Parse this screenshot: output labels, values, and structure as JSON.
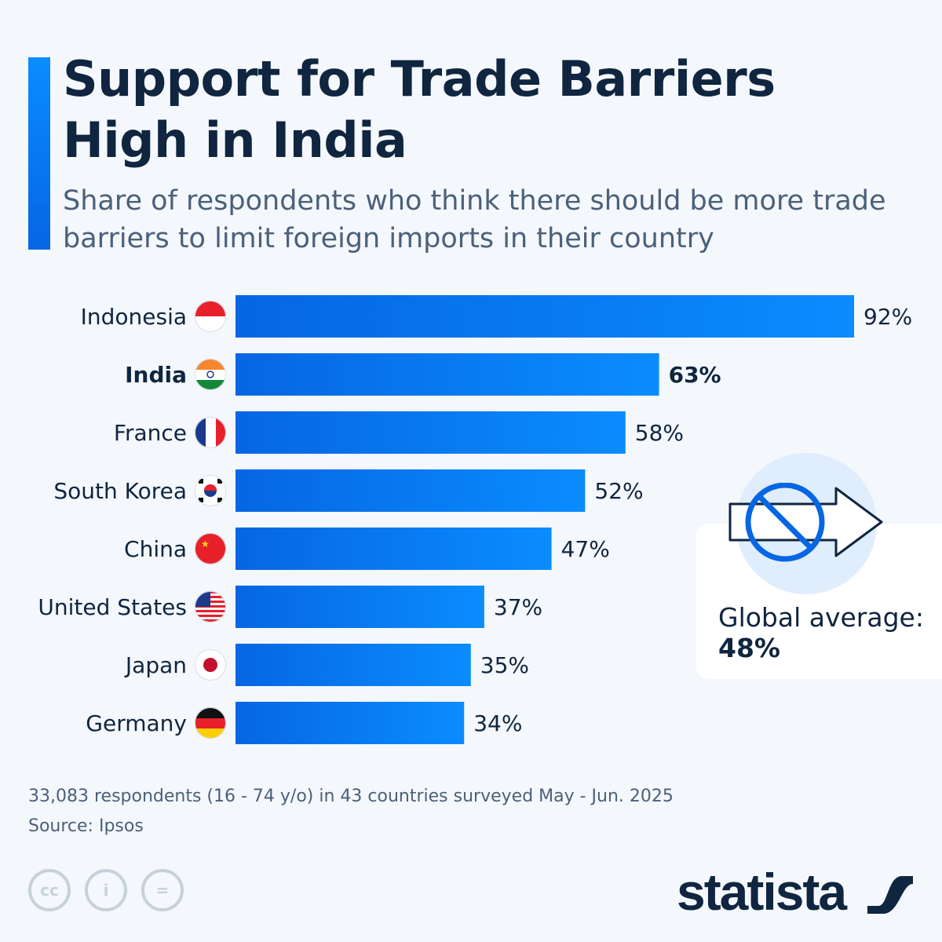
{
  "title": "Support for Trade Barriers High in India",
  "title_line1": "Support for Trade Barriers",
  "title_line2": "High in India",
  "subtitle": "Share of respondents who think there should be more trade barriers to limit foreign imports in their country",
  "chart_data": {
    "type": "bar",
    "orientation": "horizontal",
    "categories": [
      "Indonesia",
      "India",
      "France",
      "South Korea",
      "China",
      "United States",
      "Japan",
      "Germany"
    ],
    "values": [
      92,
      63,
      58,
      52,
      47,
      37,
      35,
      34
    ],
    "data_labels": [
      "92%",
      "63%",
      "58%",
      "52%",
      "47%",
      "37%",
      "35%",
      "34%"
    ],
    "highlighted": "India",
    "unit": "%",
    "xlim": [
      0,
      100
    ],
    "grid": false,
    "bar_colors": [
      "#0666e3",
      "#0a8cff"
    ]
  },
  "global_average": {
    "label": "Global average:",
    "value": "48%",
    "icon": "no-import-arrow-icon"
  },
  "footnote": "33,083 respondents (16 - 74 y/o) in 43 countries surveyed May - Jun. 2025",
  "source": "Source: Ipsos",
  "license_icons": [
    "cc-icon",
    "attribution-icon",
    "no-derivatives-icon"
  ],
  "brand": "statista",
  "colors": {
    "accent": "#0a74f0",
    "text": "#0f2540",
    "muted": "#4b607a",
    "background": "#f4f7fb"
  }
}
